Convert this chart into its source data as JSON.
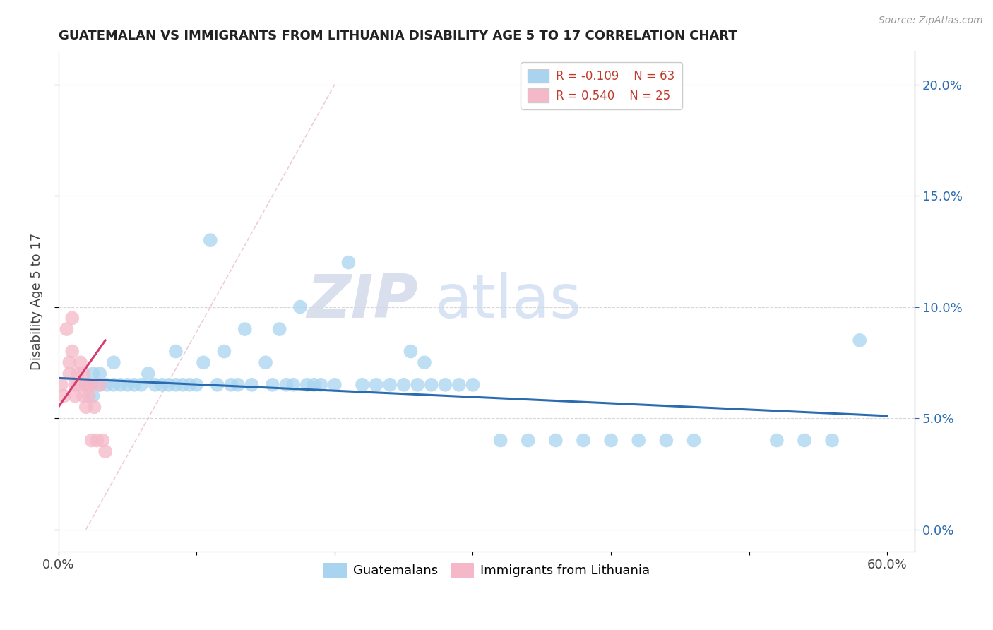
{
  "title": "GUATEMALAN VS IMMIGRANTS FROM LITHUANIA DISABILITY AGE 5 TO 17 CORRELATION CHART",
  "source": "Source: ZipAtlas.com",
  "ylabel": "Disability Age 5 to 17",
  "xlim": [
    0.0,
    0.62
  ],
  "ylim": [
    -0.01,
    0.215
  ],
  "x_tick_positions": [
    0.0,
    0.1,
    0.2,
    0.3,
    0.4,
    0.5,
    0.6
  ],
  "x_tick_labels": [
    "0.0%",
    "",
    "",
    "",
    "",
    "",
    "60.0%"
  ],
  "y_tick_positions": [
    0.0,
    0.05,
    0.1,
    0.15,
    0.2
  ],
  "y_tick_labels_right": [
    "0.0%",
    "5.0%",
    "10.0%",
    "15.0%",
    "20.0%"
  ],
  "legend_r1": "R = -0.109",
  "legend_n1": "N = 63",
  "legend_r2": "R = 0.540",
  "legend_n2": "N = 25",
  "color_guatemalan": "#a8d4f0",
  "color_lithuania": "#f5b8c8",
  "color_line_guatemalan": "#2b6cb0",
  "color_line_lithuania": "#d63b6e",
  "watermark_zip": "ZIP",
  "watermark_atlas": "atlas",
  "guatemalan_x": [
    0.02,
    0.025,
    0.025,
    0.03,
    0.03,
    0.035,
    0.04,
    0.04,
    0.045,
    0.05,
    0.055,
    0.06,
    0.065,
    0.07,
    0.075,
    0.08,
    0.085,
    0.085,
    0.09,
    0.095,
    0.1,
    0.105,
    0.11,
    0.115,
    0.12,
    0.125,
    0.13,
    0.135,
    0.14,
    0.15,
    0.155,
    0.16,
    0.165,
    0.17,
    0.175,
    0.18,
    0.185,
    0.19,
    0.2,
    0.21,
    0.22,
    0.23,
    0.24,
    0.25,
    0.255,
    0.26,
    0.265,
    0.27,
    0.28,
    0.29,
    0.3,
    0.32,
    0.34,
    0.36,
    0.38,
    0.4,
    0.42,
    0.44,
    0.46,
    0.52,
    0.54,
    0.56,
    0.58
  ],
  "guatemalan_y": [
    0.065,
    0.06,
    0.07,
    0.065,
    0.07,
    0.065,
    0.065,
    0.075,
    0.065,
    0.065,
    0.065,
    0.065,
    0.07,
    0.065,
    0.065,
    0.065,
    0.08,
    0.065,
    0.065,
    0.065,
    0.065,
    0.075,
    0.13,
    0.065,
    0.08,
    0.065,
    0.065,
    0.09,
    0.065,
    0.075,
    0.065,
    0.09,
    0.065,
    0.065,
    0.1,
    0.065,
    0.065,
    0.065,
    0.065,
    0.12,
    0.065,
    0.065,
    0.065,
    0.065,
    0.08,
    0.065,
    0.075,
    0.065,
    0.065,
    0.065,
    0.065,
    0.04,
    0.04,
    0.04,
    0.04,
    0.04,
    0.04,
    0.04,
    0.04,
    0.04,
    0.04,
    0.04,
    0.085
  ],
  "lithuania_x": [
    0.002,
    0.004,
    0.006,
    0.008,
    0.008,
    0.01,
    0.01,
    0.012,
    0.012,
    0.014,
    0.014,
    0.016,
    0.018,
    0.018,
    0.02,
    0.02,
    0.022,
    0.022,
    0.024,
    0.024,
    0.026,
    0.028,
    0.03,
    0.032,
    0.034
  ],
  "lithuania_y": [
    0.065,
    0.06,
    0.09,
    0.075,
    0.07,
    0.08,
    0.095,
    0.065,
    0.06,
    0.07,
    0.065,
    0.075,
    0.06,
    0.07,
    0.065,
    0.055,
    0.065,
    0.06,
    0.065,
    0.04,
    0.055,
    0.04,
    0.065,
    0.04,
    0.035
  ],
  "guat_line_x": [
    0.0,
    0.6
  ],
  "guat_line_y": [
    0.068,
    0.051
  ],
  "lith_line_x": [
    0.0,
    0.034
  ],
  "lith_line_y": [
    0.055,
    0.085
  ]
}
